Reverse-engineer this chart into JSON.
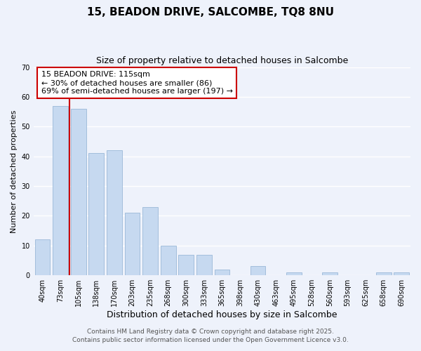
{
  "title": "15, BEADON DRIVE, SALCOMBE, TQ8 8NU",
  "subtitle": "Size of property relative to detached houses in Salcombe",
  "xlabel": "Distribution of detached houses by size in Salcombe",
  "ylabel": "Number of detached properties",
  "bar_labels": [
    "40sqm",
    "73sqm",
    "105sqm",
    "138sqm",
    "170sqm",
    "203sqm",
    "235sqm",
    "268sqm",
    "300sqm",
    "333sqm",
    "365sqm",
    "398sqm",
    "430sqm",
    "463sqm",
    "495sqm",
    "528sqm",
    "560sqm",
    "593sqm",
    "625sqm",
    "658sqm",
    "690sqm"
  ],
  "bar_values": [
    12,
    57,
    56,
    41,
    42,
    21,
    23,
    10,
    7,
    7,
    2,
    0,
    3,
    0,
    1,
    0,
    1,
    0,
    0,
    1,
    1
  ],
  "bar_color": "#c6d9f0",
  "bar_edge_color": "#9ab8d8",
  "vline_color": "#cc0000",
  "annotation_title": "15 BEADON DRIVE: 115sqm",
  "annotation_line1": "← 30% of detached houses are smaller (86)",
  "annotation_line2": "69% of semi-detached houses are larger (197) →",
  "annotation_box_color": "#ffffff",
  "annotation_box_edge": "#cc0000",
  "ylim": [
    0,
    70
  ],
  "yticks": [
    0,
    10,
    20,
    30,
    40,
    50,
    60,
    70
  ],
  "footer1": "Contains HM Land Registry data © Crown copyright and database right 2025.",
  "footer2": "Contains public sector information licensed under the Open Government Licence v3.0.",
  "bg_color": "#eef2fb",
  "plot_bg_color": "#eef2fb",
  "grid_color": "#ffffff",
  "title_fontsize": 11,
  "subtitle_fontsize": 9,
  "xlabel_fontsize": 9,
  "ylabel_fontsize": 8,
  "tick_fontsize": 7,
  "footer_fontsize": 6.5,
  "annotation_fontsize": 8
}
